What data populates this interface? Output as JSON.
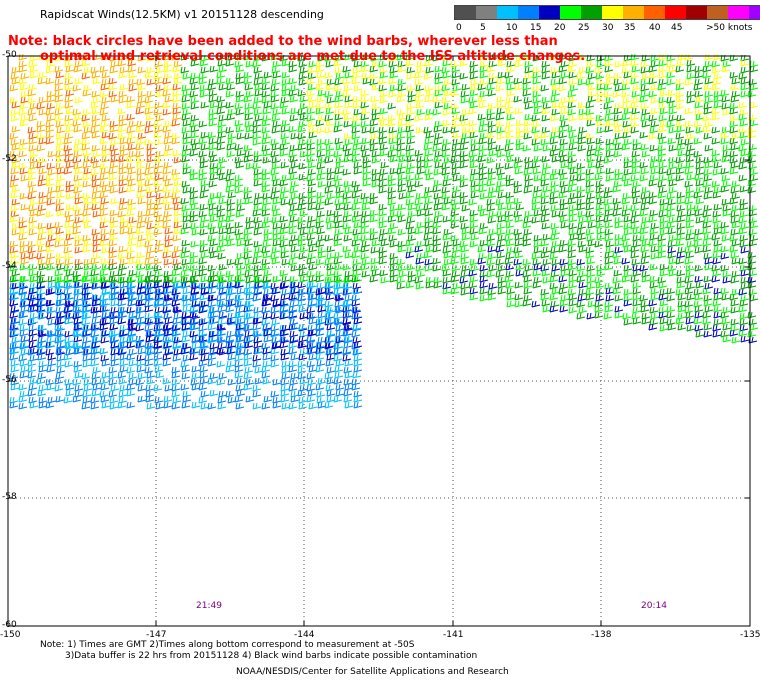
{
  "title": "Rapidscat Winds(12.5KM) v1 20151128 descending",
  "note_lines": [
    "Note: black circles have been added to the wind barbs, wherever less than",
    "optimal wind retrieval conditions are met due to the ISS altitude changes."
  ],
  "legend": {
    "unit": "knots",
    "colors": [
      "#505050",
      "#808080",
      "#00c0ff",
      "#0080ff",
      "#0000c0",
      "#00ff00",
      "#00a000",
      "#ffff00",
      "#ffb000",
      "#ff6000",
      "#ff0000",
      "#a00000",
      "#c06020",
      "#ff00ff",
      "#a000ff",
      "#400080"
    ],
    "labels": [
      "0",
      "5",
      "10",
      "15",
      "20",
      "25",
      "30",
      "35",
      "40",
      "45",
      ">50 knots"
    ]
  },
  "map": {
    "lon_ticks": [
      "-150",
      "-147",
      "-144",
      "-141",
      "-138",
      "-135"
    ],
    "lat_ticks": [
      "-50",
      "-52",
      "-54",
      "-56",
      "-58",
      "-60"
    ],
    "lon_range": [
      -150,
      -135
    ],
    "lat_range": [
      -60,
      -50
    ],
    "grid": true,
    "pass_times": [
      "21:49",
      "20:14"
    ]
  },
  "footnote_lines": [
    "Note: 1) Times are GMT 2)Times along bottom correspond to measurement at -50S",
    "3)Data buffer is 22 hrs from 20151128 4) Black wind barbs indicate possible contamination"
  ],
  "credit": "NOAA/NESDIS/Center for Satellite Applications and Research"
}
